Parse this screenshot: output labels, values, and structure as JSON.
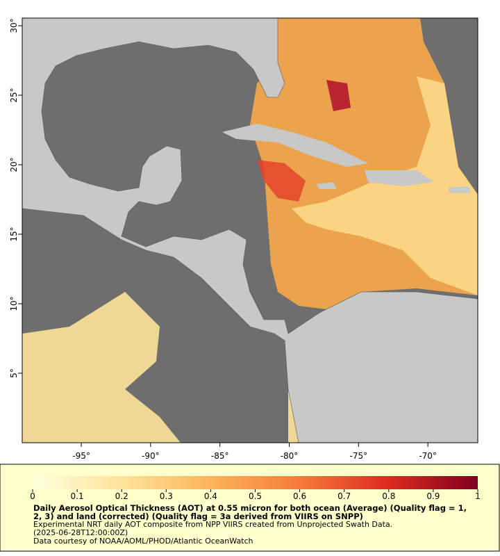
{
  "map": {
    "xlim": [
      -99.26,
      -66.4
    ],
    "ylim": [
      0,
      30.55
    ],
    "xticks": [
      {
        "value": -95,
        "label": "-95°"
      },
      {
        "value": -90,
        "label": "-90°"
      },
      {
        "value": -85,
        "label": "-85°"
      },
      {
        "value": -80,
        "label": "-80°"
      },
      {
        "value": -75,
        "label": "-75°"
      },
      {
        "value": -70,
        "label": "-70°"
      }
    ],
    "yticks": [
      {
        "value": 5,
        "label": "5°"
      },
      {
        "value": 10,
        "label": "10°"
      },
      {
        "value": 15,
        "label": "15°"
      },
      {
        "value": 20,
        "label": "20°"
      },
      {
        "value": 25,
        "label": "25°"
      },
      {
        "value": 30,
        "label": "30°"
      }
    ]
  },
  "colorbar": {
    "lim": [
      0,
      1
    ],
    "ticks": [
      0,
      0.1,
      0.2,
      0.3,
      0.4,
      0.5,
      0.6,
      0.7,
      0.8,
      0.9,
      1
    ]
  },
  "caption": {
    "title": "Daily Aerosol Optical Thickness (AOT) at 0.55 micron for both ocean (Average) (Quality flag = 1, 2, 3) and land (corrected) (Quality flag = 3a derived from VIIRS on SNPP)",
    "lines": [
      "Experimental NRT daily AOT composite from NPP VIIRS created from Unprojected Swath Data.",
      "(2025-06-28T12:00:00Z)",
      "Data courtesy of NOAA/AOML/PHOD/Atlantic OceanWatch"
    ]
  }
}
